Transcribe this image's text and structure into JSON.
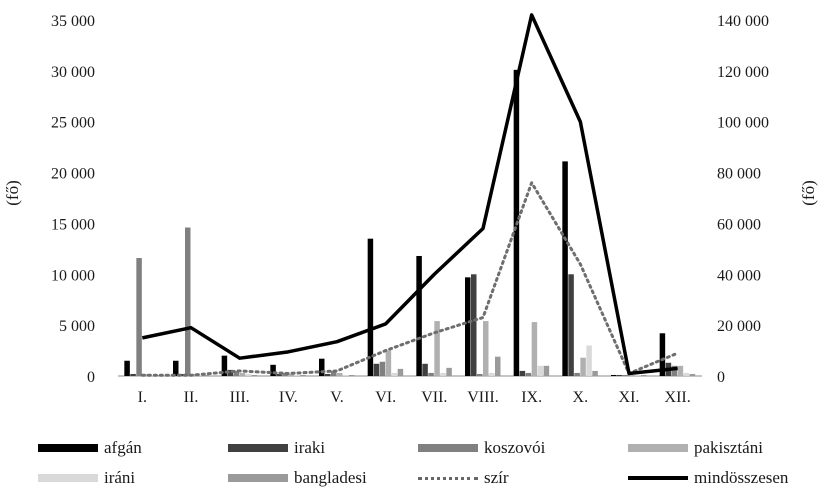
{
  "chart_data": {
    "type": "bar",
    "categories": [
      "I.",
      "II.",
      "III.",
      "IV.",
      "V.",
      "VI.",
      "VII.",
      "VIII.",
      "IX.",
      "X.",
      "XI.",
      "XII."
    ],
    "ylabel_left": "(fő)",
    "ylabel_right": "(fő)",
    "ylim_left": [
      0,
      35000
    ],
    "ylim_right": [
      0,
      140000
    ],
    "y_ticks_left": [
      "0",
      "5 000",
      "10 000",
      "15 000",
      "20 000",
      "25 000",
      "30 000",
      "35 000"
    ],
    "y_ticks_right": [
      "0",
      "20 000",
      "40 000",
      "60 000",
      "80 000",
      "100 000",
      "120 000",
      "140 000"
    ],
    "grid": false,
    "legend_position": "bottom",
    "series": [
      {
        "name": "afgán",
        "type": "bar",
        "axis": "left",
        "color": "#000000",
        "values": [
          1500,
          1500,
          2000,
          1100,
          1700,
          13500,
          11800,
          9700,
          30100,
          21100,
          100,
          4200
        ]
      },
      {
        "name": "iraki",
        "type": "bar",
        "axis": "left",
        "color": "#404040",
        "values": [
          200,
          200,
          600,
          200,
          200,
          1200,
          1200,
          10000,
          500,
          10000,
          100,
          1300
        ]
      },
      {
        "name": "koszovói",
        "type": "bar",
        "axis": "left",
        "color": "#808080",
        "values": [
          11600,
          14600,
          500,
          300,
          500,
          1400,
          300,
          200,
          300,
          300,
          100,
          1000
        ]
      },
      {
        "name": "pakisztáni",
        "type": "bar",
        "axis": "left",
        "color": "#b0b0b0",
        "values": [
          200,
          200,
          300,
          200,
          300,
          2500,
          5400,
          5400,
          5300,
          1800,
          100,
          1000
        ]
      },
      {
        "name": "iráni",
        "type": "bar",
        "axis": "left",
        "color": "#d9d9d9",
        "values": [
          100,
          100,
          200,
          100,
          100,
          300,
          300,
          300,
          1000,
          3000,
          100,
          300
        ]
      },
      {
        "name": "bangladesi",
        "type": "bar",
        "axis": "left",
        "color": "#9a9a9a",
        "values": [
          100,
          100,
          100,
          100,
          100,
          700,
          800,
          1900,
          1000,
          500,
          100,
          200
        ]
      },
      {
        "name": "szír",
        "type": "line",
        "axis": "right",
        "color": "#6e6e6e",
        "dash": "dotted",
        "values": [
          300,
          300,
          2000,
          1000,
          2000,
          10000,
          17000,
          23000,
          76000,
          44000,
          1000,
          9000
        ]
      },
      {
        "name": "mindösszesen",
        "type": "line",
        "axis": "right",
        "color": "#000000",
        "dash": "solid",
        "values": [
          15000,
          19000,
          7000,
          9500,
          13500,
          20500,
          40000,
          58000,
          142000,
          100000,
          1000,
          3000
        ]
      }
    ]
  }
}
